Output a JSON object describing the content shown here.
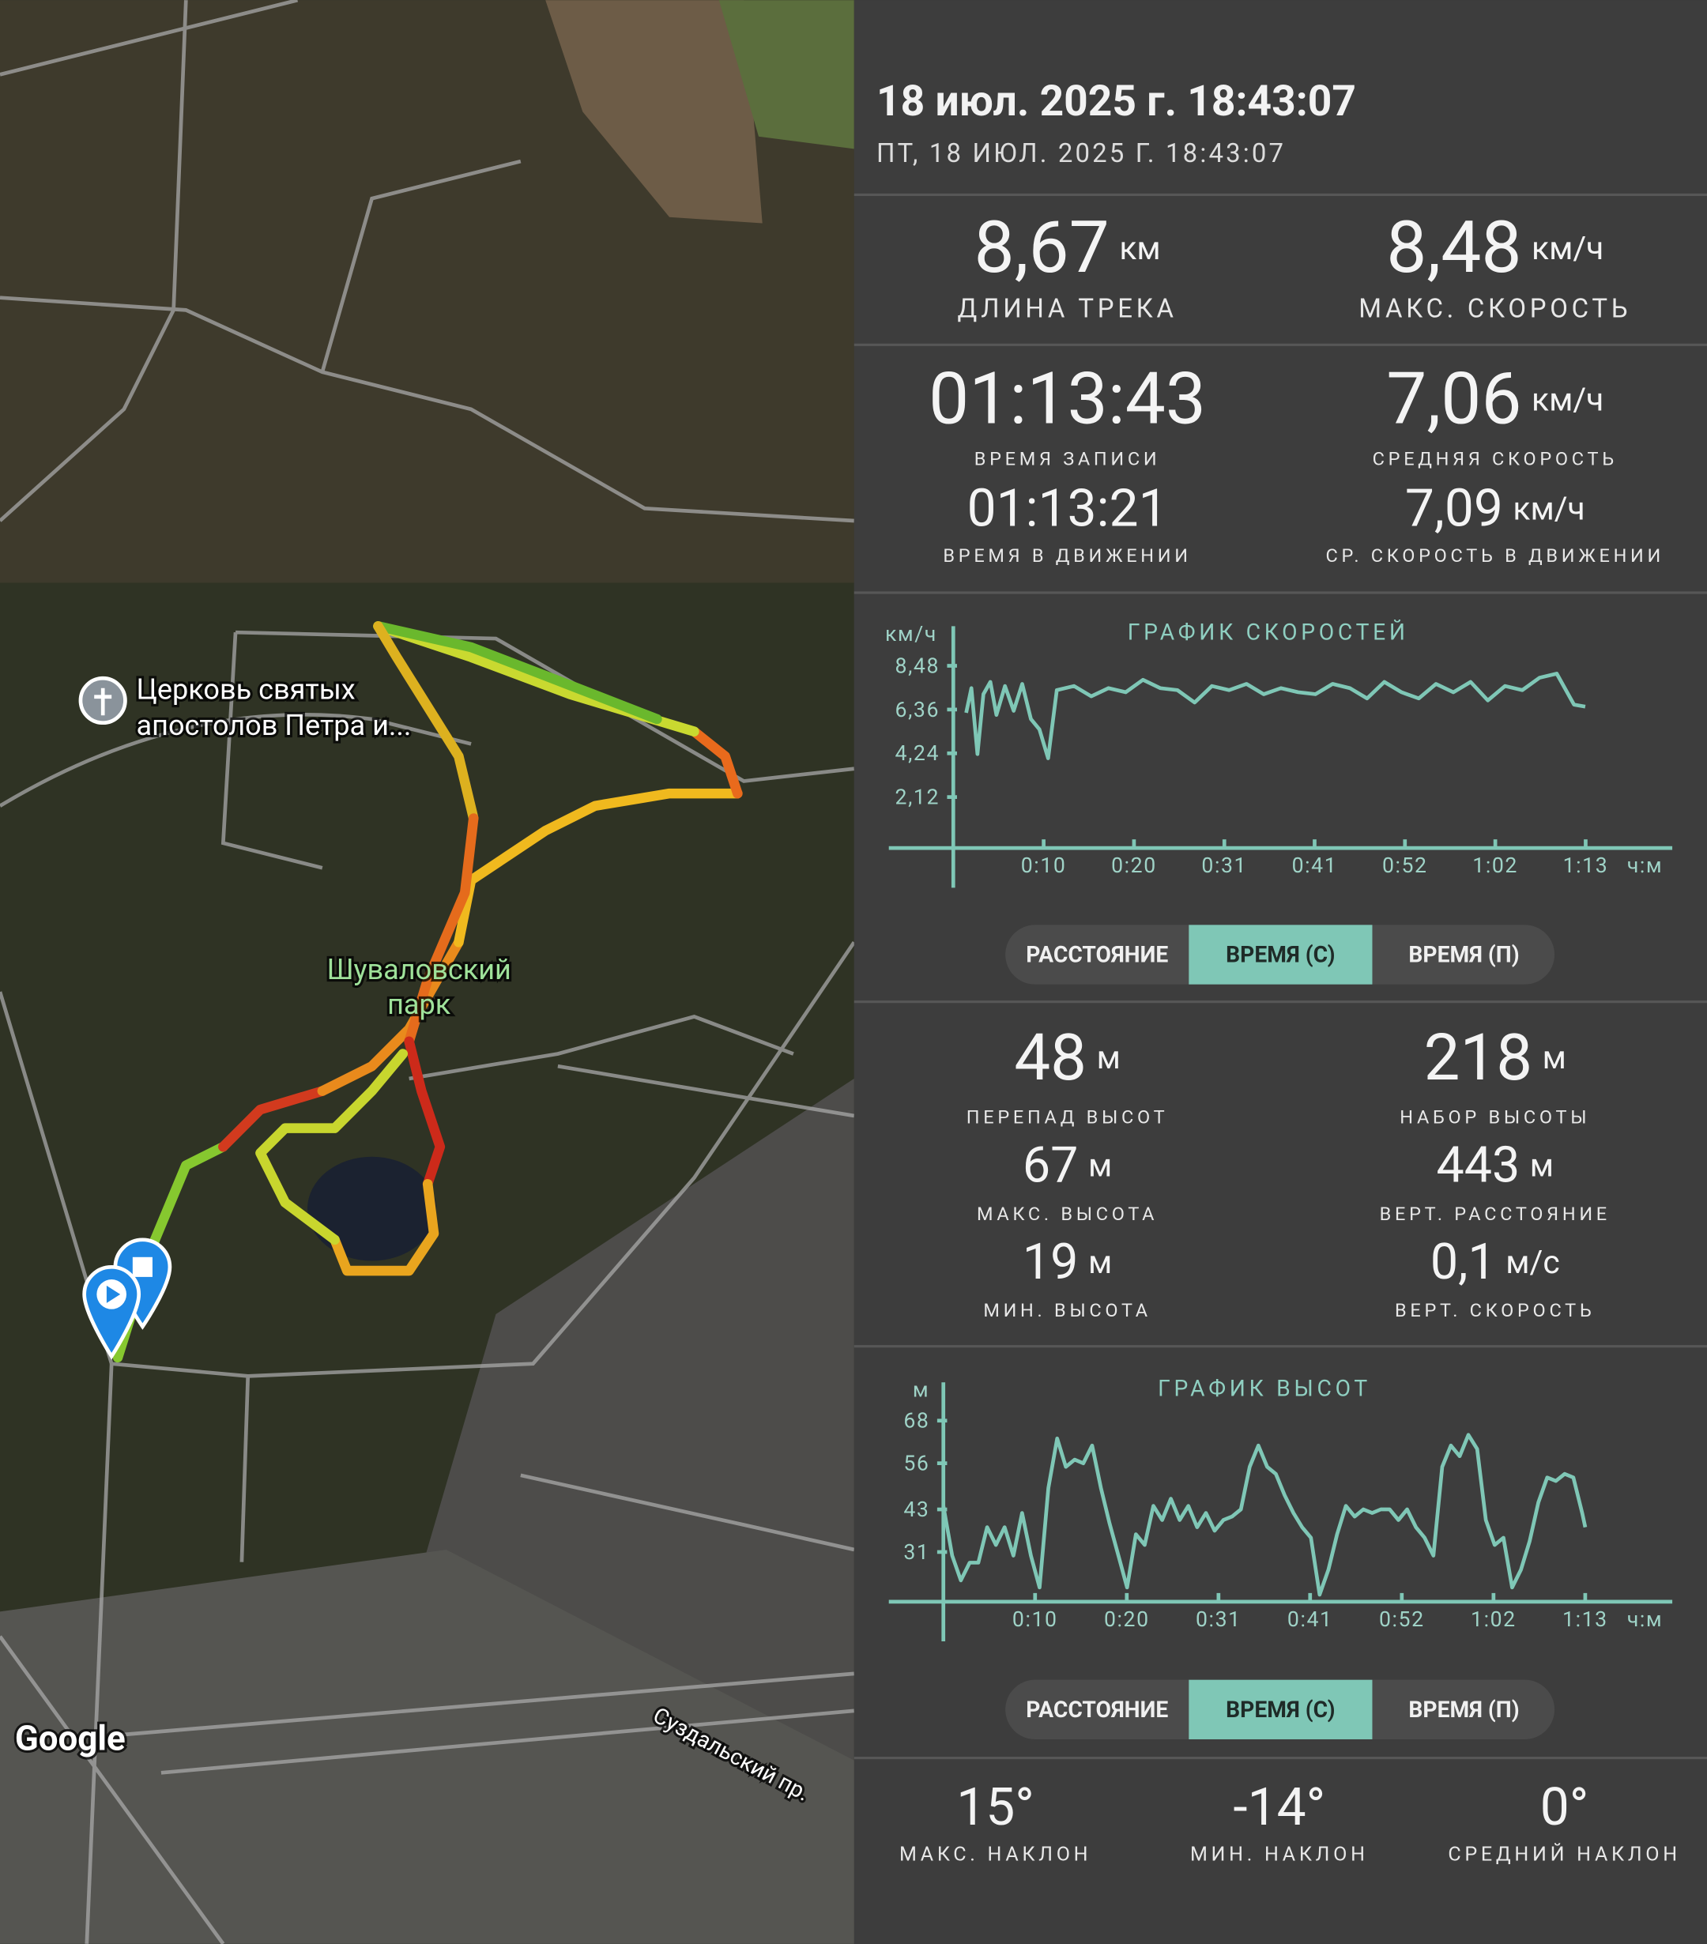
{
  "map": {
    "church_label": [
      "Церковь святых",
      "апостолов Петра и..."
    ],
    "park_label": [
      "Шуваловский",
      "парк"
    ],
    "logo": "Google",
    "street_label": "Суздальский пр."
  },
  "header": {
    "title": "18 июл. 2025 г. 18:43:07",
    "subtitle": "ПТ, 18 ИЮЛ. 2025 Г. 18:43:07"
  },
  "track_stats": [
    {
      "value": "8,67",
      "unit": "км",
      "label": "ДЛИНА ТРЕКА"
    },
    {
      "value": "8,48",
      "unit": "км/ч",
      "label": "МАКС. СКОРОСТЬ"
    },
    {
      "value": "01:13:43",
      "label": "ВРЕМЯ ЗАПИСИ"
    },
    {
      "value": "7,06",
      "unit": "км/ч",
      "label": "СРЕДНЯЯ СКОРОСТЬ"
    },
    {
      "value": "01:13:21",
      "label": "ВРЕМЯ В ДВИЖЕНИИ"
    },
    {
      "value": "7,09",
      "unit": "км/ч",
      "label": "СР. СКОРОСТЬ В ДВИЖЕНИИ"
    }
  ],
  "elevation_stats": [
    {
      "value": "48",
      "unit": "м",
      "label": "ПЕРЕПАД ВЫСОТ"
    },
    {
      "value": "218",
      "unit": "м",
      "label": "НАБОР ВЫСОТЫ"
    },
    {
      "value": "67",
      "unit": "м",
      "label": "МАКС. ВЫСОТА"
    },
    {
      "value": "443",
      "unit": "м",
      "label": "ВЕРТ. РАССТОЯНИЕ"
    },
    {
      "value": "19",
      "unit": "м",
      "label": "МИН. ВЫСОТА"
    },
    {
      "value": "0,1",
      "unit": "м/с",
      "label": "ВЕРТ. СКОРОСТЬ"
    }
  ],
  "slope_stats": [
    {
      "value": "15°",
      "label": "МАКС. НАКЛОН"
    },
    {
      "value": "-14°",
      "label": "МИН. НАКЛОН"
    },
    {
      "value": "0°",
      "label": "СРЕДНИЙ НАКЛОН"
    }
  ],
  "toggles": {
    "options": [
      "РАССТОЯНИЕ",
      "ВРЕМЯ (С)",
      "ВРЕМЯ (П)"
    ],
    "selected": 1
  },
  "chart_data": [
    {
      "type": "line",
      "title": "ГРАФИК СКОРОСТЕЙ",
      "y_unit": "км/ч",
      "x_unit": "ч:м",
      "color": "#7fc7b6",
      "xlim": [
        0,
        83.4
      ],
      "ylim": [
        -0.35,
        10.4
      ],
      "xticks": [
        {
          "value": 10.48,
          "label": "0:10"
        },
        {
          "value": 20.96,
          "label": "0:20"
        },
        {
          "value": 31.44,
          "label": "0:31"
        },
        {
          "value": 41.91,
          "label": "0:41"
        },
        {
          "value": 52.39,
          "label": "0:52"
        },
        {
          "value": 62.87,
          "label": "1:02"
        },
        {
          "value": 73.35,
          "label": "1:13"
        }
      ],
      "yticks": [
        {
          "value": 2.12,
          "label": "2,12"
        },
        {
          "value": 4.24,
          "label": "4,24"
        },
        {
          "value": 6.36,
          "label": "6,36"
        },
        {
          "value": 8.48,
          "label": "8,48"
        }
      ],
      "x": [
        1.5,
        2.1,
        2.8,
        3.5,
        4.3,
        5,
        6,
        7,
        8,
        9,
        10,
        11,
        12,
        14,
        16,
        18,
        20,
        22,
        24,
        26,
        28,
        30,
        32,
        34,
        36,
        38,
        40,
        42,
        44,
        46,
        48,
        50,
        52,
        54,
        56,
        58,
        60,
        62,
        64,
        66,
        68,
        70,
        72,
        73.3
      ],
      "values": [
        6.2,
        7.4,
        4.2,
        7.1,
        7.7,
        6.1,
        7.5,
        6.3,
        7.6,
        5.9,
        5.4,
        4.0,
        7.3,
        7.5,
        7.0,
        7.4,
        7.2,
        7.8,
        7.4,
        7.3,
        6.7,
        7.5,
        7.3,
        7.6,
        7.1,
        7.4,
        7.2,
        7.1,
        7.6,
        7.4,
        6.9,
        7.7,
        7.2,
        6.9,
        7.6,
        7.2,
        7.7,
        6.8,
        7.5,
        7.3,
        7.9,
        8.1,
        6.6,
        6.5
      ]
    },
    {
      "type": "line",
      "title": "ГРАФИК ВЫСОТ",
      "y_unit": "м",
      "x_unit": "ч:м",
      "color": "#7fc7b6",
      "xlim": [
        0,
        83.3
      ],
      "ylim": [
        17,
        78.8
      ],
      "xticks": [
        {
          "value": 10.48,
          "label": "0:10"
        },
        {
          "value": 20.96,
          "label": "0:20"
        },
        {
          "value": 31.44,
          "label": "0:31"
        },
        {
          "value": 41.91,
          "label": "0:41"
        },
        {
          "value": 52.39,
          "label": "0:52"
        },
        {
          "value": 62.87,
          "label": "1:02"
        },
        {
          "value": 73.35,
          "label": "1:13"
        }
      ],
      "yticks": [
        31,
        43,
        56,
        68
      ],
      "x": [
        0,
        1,
        2,
        3,
        4,
        5,
        6,
        7,
        8,
        9,
        10,
        11,
        12,
        13,
        14,
        15,
        16,
        17,
        18,
        19,
        20,
        21,
        22,
        23,
        24,
        25,
        26,
        27,
        28,
        29,
        30,
        31,
        32,
        33,
        34,
        35,
        36,
        37,
        38,
        39,
        40,
        41,
        42,
        43,
        44,
        45,
        46,
        47,
        48,
        49,
        50,
        51,
        52,
        53,
        54,
        55,
        56,
        57,
        58,
        59,
        60,
        61,
        62,
        63,
        64,
        65,
        66,
        67,
        68,
        69,
        70,
        71,
        72,
        73,
        73.35
      ],
      "values": [
        44,
        30,
        23,
        28,
        28,
        38,
        33,
        38,
        30,
        42,
        30,
        21,
        49,
        63,
        55,
        57,
        56,
        61,
        49,
        39,
        30,
        21,
        36,
        33,
        44,
        40,
        46,
        40,
        44,
        38,
        42,
        37,
        40,
        41,
        43,
        55,
        61,
        55,
        53,
        47,
        42,
        38,
        35,
        19,
        26,
        36,
        44,
        41,
        43,
        42,
        43,
        43,
        40,
        43,
        38,
        35,
        30,
        55,
        61,
        58,
        64,
        60,
        40,
        33,
        35,
        21,
        26,
        34,
        45,
        52,
        51,
        53,
        52,
        42,
        38
      ]
    }
  ]
}
